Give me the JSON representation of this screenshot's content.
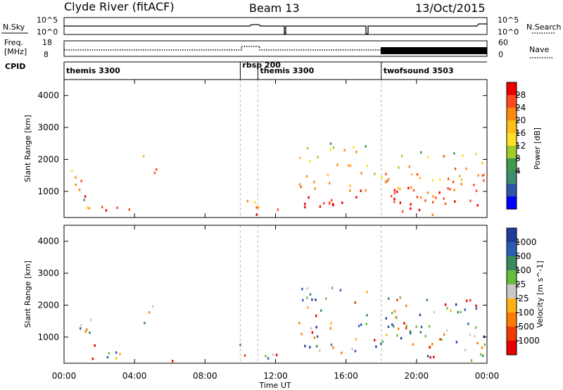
{
  "header": {
    "title": "Clyde River (fitACF)",
    "beam": "Beam 13",
    "date": "13/Oct/2015"
  },
  "panels": {
    "nsky": {
      "label": "N.Sky",
      "ticks": [
        "10^5",
        "10^0"
      ]
    },
    "nsearch": {
      "label": "N.Search",
      "ticks": [
        "10^5",
        "10^0"
      ]
    },
    "freq": {
      "label_top": "Freq.",
      "label_unit": "[MHz]",
      "ticks": [
        "18",
        "8"
      ]
    },
    "nave": {
      "label": "Nave",
      "ticks": [
        "60",
        "0"
      ]
    },
    "cpid": {
      "label": "CPID"
    }
  },
  "cpid_segments": [
    {
      "name": "themis 3300",
      "start_hour": 0.0
    },
    {
      "name": "rbsp 200",
      "start_hour": 10.0
    },
    {
      "name": "themis 3300",
      "start_hour": 11.0
    },
    {
      "name": "twofsound 3503",
      "start_hour": 18.0
    }
  ],
  "chart_data": [
    {
      "type": "heatmap",
      "variable": "Power",
      "ylabel": "Slant Range [km]",
      "xlabel": "Time UT",
      "ylim": [
        180,
        4500
      ],
      "xlim_hours": [
        0,
        24
      ],
      "yticks": [
        1000,
        2000,
        3000,
        4000
      ],
      "colorbar": {
        "label": "Power [dB]",
        "ticks": [
          "28",
          "24",
          "20",
          "16",
          "12",
          "8",
          "4"
        ],
        "colors": [
          "#ee0000",
          "#ff4a1e",
          "#ff8a10",
          "#ffbf18",
          "#ffe025",
          "#9ecd2a",
          "#3e9a4c",
          "#3d8e6c",
          "#2c56a8",
          "#0000ff"
        ]
      }
    },
    {
      "type": "heatmap",
      "variable": "Velocity",
      "ylabel": "Slant Range [km]",
      "xlabel": "Time UT",
      "ylim": [
        180,
        4500
      ],
      "xlim_hours": [
        0,
        24
      ],
      "yticks": [
        1000,
        2000,
        3000,
        4000
      ],
      "colorbar": {
        "label": "Velocity [m s^-1]",
        "ticks": [
          "1000",
          "500",
          "100",
          "25",
          "-25",
          "-100",
          "-500",
          "-1000"
        ],
        "colors": [
          "#1f3c9c",
          "#2a5eae",
          "#3a8a5c",
          "#67be3e",
          "#c8c8c8",
          "#ffb014",
          "#ff7a00",
          "#f03a00",
          "#e60000"
        ]
      }
    }
  ],
  "xaxis": {
    "ticklabels": [
      "00:00",
      "04:00",
      "08:00",
      "12:00",
      "16:00",
      "20:00",
      "00:00"
    ],
    "title": "Time UT"
  }
}
